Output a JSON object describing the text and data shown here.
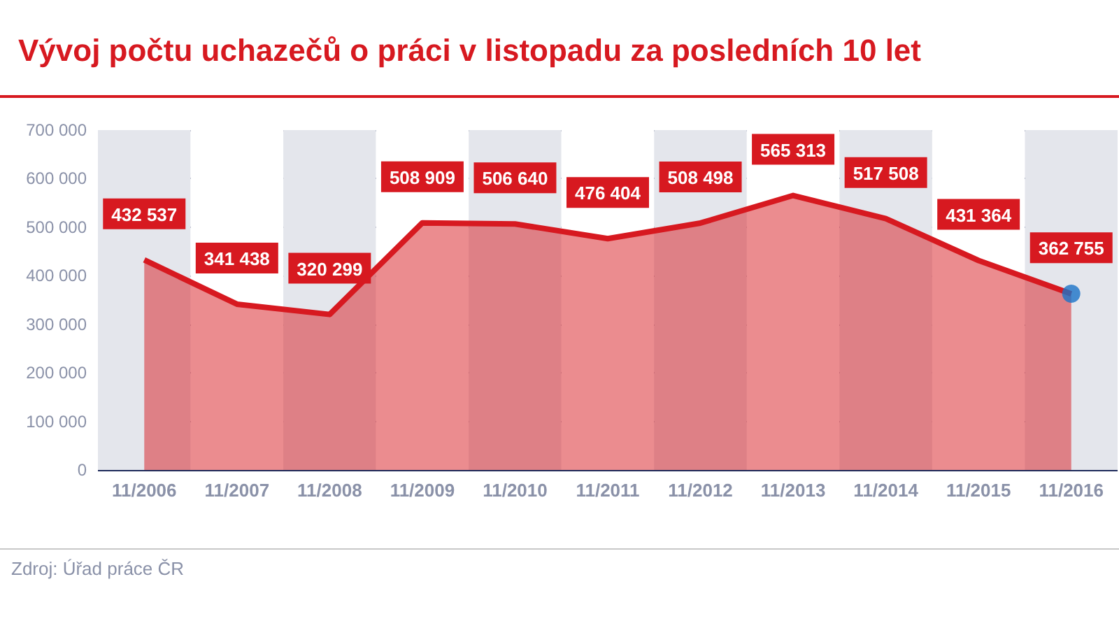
{
  "chart_data": {
    "type": "area",
    "title": "Vývoj počtu uchazečů o práci v listopadu za posledních 10 let",
    "categories": [
      "11/2006",
      "11/2007",
      "11/2008",
      "11/2009",
      "11/2010",
      "11/2011",
      "11/2012",
      "11/2013",
      "11/2014",
      "11/2015",
      "11/2016"
    ],
    "series": [
      {
        "color": "#d71920",
        "values": [
          432537,
          341438,
          320299,
          508909,
          506640,
          476404,
          508498,
          565313,
          517508,
          431364,
          362755
        ],
        "value_labels": [
          "432 537",
          "341 438",
          "320 299",
          "508 909",
          "506 640",
          "476 404",
          "508 498",
          "565 313",
          "517 508",
          "431 364",
          "362 755"
        ]
      },
      {
        "type": "scatter",
        "color": "#1a73c8",
        "x": [
          "11/2016"
        ],
        "values": [
          363000
        ]
      }
    ],
    "ylim": [
      0,
      700000
    ],
    "yticks": [
      {
        "value": 0,
        "label": "0"
      },
      {
        "value": 100000,
        "label": "100 000"
      },
      {
        "value": 200000,
        "label": "200 000"
      },
      {
        "value": 300000,
        "label": "300 000"
      },
      {
        "value": 400000,
        "label": "400 000"
      },
      {
        "value": 500000,
        "label": "500 000"
      },
      {
        "value": 600000,
        "label": "600 000"
      },
      {
        "value": 700000,
        "label": "700 000"
      }
    ],
    "grid": "y",
    "annotations": [
      "Zdroj: Úřad práce ČR"
    ]
  }
}
